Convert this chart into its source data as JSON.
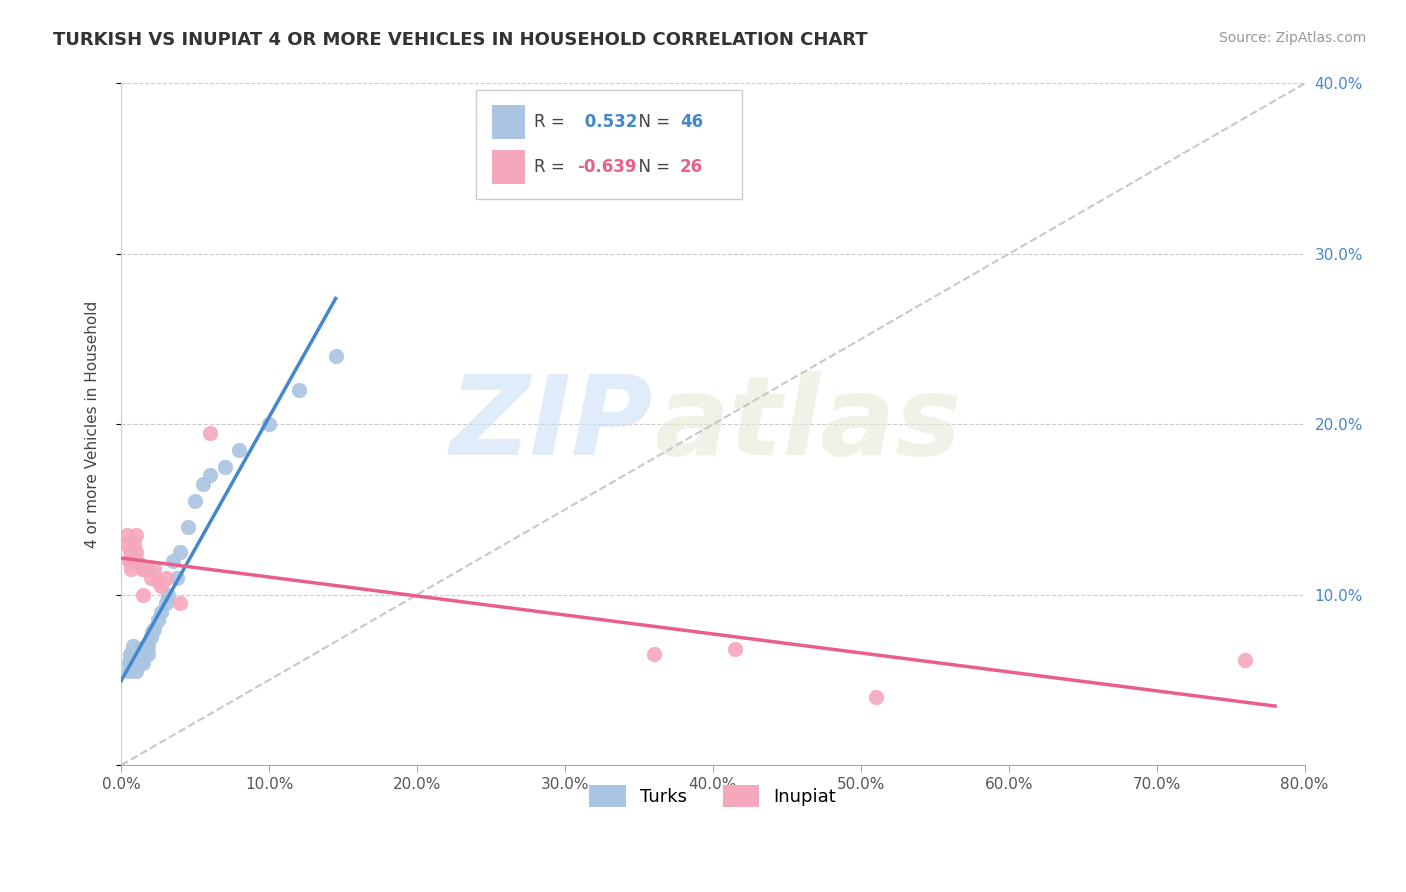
{
  "title": "TURKISH VS INUPIAT 4 OR MORE VEHICLES IN HOUSEHOLD CORRELATION CHART",
  "source": "Source: ZipAtlas.com",
  "ylabel": "4 or more Vehicles in Household",
  "xlim": [
    0.0,
    0.8
  ],
  "ylim": [
    0.0,
    0.4
  ],
  "xticks": [
    0.0,
    0.1,
    0.2,
    0.3,
    0.4,
    0.5,
    0.6,
    0.7,
    0.8
  ],
  "yticks": [
    0.0,
    0.1,
    0.2,
    0.3,
    0.4
  ],
  "xtick_labels": [
    "0.0%",
    "10.0%",
    "20.0%",
    "30.0%",
    "40.0%",
    "50.0%",
    "60.0%",
    "70.0%",
    "80.0%"
  ],
  "ytick_labels": [
    "",
    "10.0%",
    "20.0%",
    "30.0%",
    "40.0%"
  ],
  "turks_R": 0.532,
  "turks_N": 46,
  "inupiat_R": -0.639,
  "inupiat_N": 26,
  "turks_color": "#aac4e2",
  "inupiat_color": "#f5a8bc",
  "turks_line_color": "#4488cc",
  "inupiat_line_color": "#e8608a",
  "diag_color": "#c8c8c8",
  "legend_label_turks": "Turks",
  "legend_label_inupiat": "Inupiat",
  "background_color": "#ffffff",
  "turks_x": [
    0.005,
    0.005,
    0.006,
    0.006,
    0.007,
    0.007,
    0.008,
    0.008,
    0.008,
    0.009,
    0.009,
    0.01,
    0.01,
    0.01,
    0.011,
    0.011,
    0.012,
    0.012,
    0.013,
    0.013,
    0.014,
    0.015,
    0.015,
    0.016,
    0.017,
    0.018,
    0.018,
    0.02,
    0.021,
    0.022,
    0.025,
    0.027,
    0.03,
    0.032,
    0.035,
    0.038,
    0.04,
    0.045,
    0.05,
    0.055,
    0.06,
    0.07,
    0.08,
    0.1,
    0.12,
    0.145
  ],
  "turks_y": [
    0.055,
    0.06,
    0.062,
    0.065,
    0.058,
    0.065,
    0.06,
    0.063,
    0.07,
    0.058,
    0.062,
    0.055,
    0.06,
    0.065,
    0.058,
    0.062,
    0.06,
    0.065,
    0.063,
    0.068,
    0.062,
    0.06,
    0.065,
    0.068,
    0.07,
    0.065,
    0.07,
    0.075,
    0.078,
    0.08,
    0.085,
    0.09,
    0.095,
    0.1,
    0.12,
    0.11,
    0.125,
    0.14,
    0.155,
    0.165,
    0.17,
    0.175,
    0.185,
    0.2,
    0.22,
    0.24
  ],
  "inupiat_x": [
    0.003,
    0.004,
    0.005,
    0.006,
    0.007,
    0.008,
    0.009,
    0.01,
    0.01,
    0.011,
    0.012,
    0.014,
    0.015,
    0.016,
    0.018,
    0.02,
    0.022,
    0.025,
    0.027,
    0.03,
    0.04,
    0.06,
    0.36,
    0.415,
    0.51,
    0.76
  ],
  "inupiat_y": [
    0.13,
    0.135,
    0.12,
    0.125,
    0.115,
    0.12,
    0.13,
    0.125,
    0.135,
    0.12,
    0.118,
    0.115,
    0.1,
    0.115,
    0.115,
    0.11,
    0.115,
    0.108,
    0.105,
    0.11,
    0.095,
    0.195,
    0.065,
    0.068,
    0.04,
    0.062
  ],
  "turks_line_x": [
    0.0,
    0.145
  ],
  "inupiat_line_x": [
    0.0,
    0.78
  ]
}
